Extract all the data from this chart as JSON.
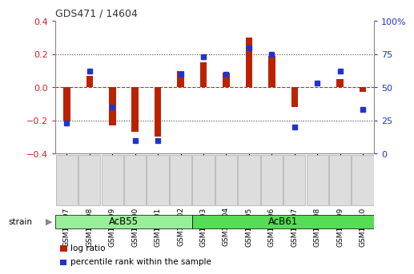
{
  "title": "GDS471 / 14604",
  "samples": [
    "GSM10997",
    "GSM10998",
    "GSM10999",
    "GSM11000",
    "GSM11001",
    "GSM11002",
    "GSM11003",
    "GSM11004",
    "GSM11005",
    "GSM11006",
    "GSM11007",
    "GSM11008",
    "GSM11009",
    "GSM11010"
  ],
  "log_ratio": [
    -0.2,
    0.07,
    -0.23,
    -0.27,
    -0.3,
    0.1,
    0.15,
    0.09,
    0.3,
    0.19,
    -0.12,
    0.0,
    0.05,
    -0.03
  ],
  "percentile": [
    23,
    62,
    35,
    10,
    10,
    60,
    73,
    60,
    80,
    75,
    20,
    53,
    62,
    33
  ],
  "groups": [
    {
      "label": "AcB55",
      "start": 0,
      "end": 5,
      "color": "#99ee99"
    },
    {
      "label": "AcB61",
      "start": 6,
      "end": 13,
      "color": "#55dd55"
    }
  ],
  "bar_color": "#bb2200",
  "dot_color": "#2233cc",
  "ylim": [
    -0.4,
    0.4
  ],
  "y2lim": [
    0,
    100
  ],
  "yticks": [
    -0.4,
    -0.2,
    0.0,
    0.2,
    0.4
  ],
  "y2ticks": [
    0,
    25,
    50,
    75,
    100
  ],
  "hline_color": "#cc2222",
  "dotted_color": "#444444",
  "background_color": "#ffffff",
  "plot_bg": "#ffffff",
  "title_color": "#333333",
  "left_tick_color": "#cc2222",
  "right_tick_color": "#2233cc",
  "legend_items": [
    {
      "label": "log ratio",
      "color": "#bb2200"
    },
    {
      "label": "percentile rank within the sample",
      "color": "#2233cc"
    }
  ],
  "tick_label_bg": "#dddddd"
}
